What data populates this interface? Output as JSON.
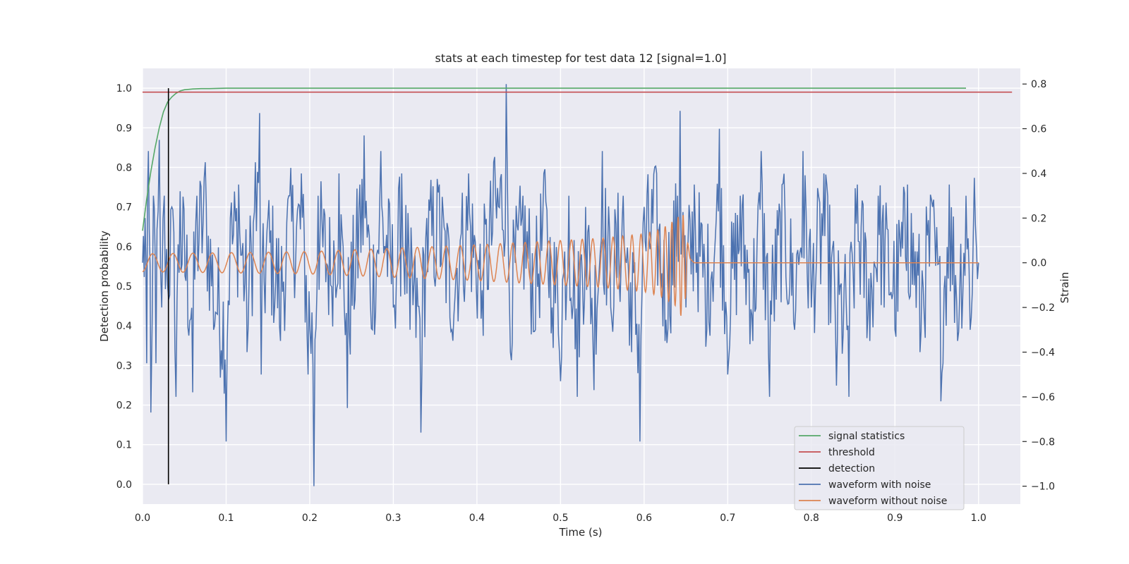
{
  "chart_data": {
    "type": "line",
    "title": "stats at each timestep for test data 12 [signal=1.0]",
    "xlabel": "Time (s)",
    "ylabel": "Detection probability",
    "y2label": "Strain",
    "xlim": [
      0.0,
      1.05
    ],
    "ylim": [
      -0.05,
      1.05
    ],
    "y2lim": [
      -1.08,
      0.87
    ],
    "grid": true,
    "legend_position": "lower-right",
    "x_ticks": [
      "0.0",
      "0.1",
      "0.2",
      "0.3",
      "0.4",
      "0.5",
      "0.6",
      "0.7",
      "0.8",
      "0.9",
      "1.0"
    ],
    "y_ticks": [
      "0.0",
      "0.1",
      "0.2",
      "0.3",
      "0.4",
      "0.5",
      "0.6",
      "0.7",
      "0.8",
      "0.9",
      "1.0"
    ],
    "y2_ticks": [
      "−1.0",
      "−0.8",
      "−0.6",
      "−0.4",
      "−0.2",
      "0.0",
      "0.2",
      "0.4",
      "0.6",
      "0.8"
    ],
    "colors": {
      "signal_statistics": "#55a868",
      "threshold": "#c44e52",
      "detection": "#000000",
      "waveform_with_noise": "#4c72b0",
      "waveform_without_noise": "#dd8452",
      "plot_background": "#eaeaf2",
      "grid": "#ffffff"
    },
    "series": [
      {
        "name": "signal statistics",
        "axis": "left",
        "x": [
          0.0,
          0.005,
          0.01,
          0.015,
          0.02,
          0.025,
          0.03,
          0.035,
          0.04,
          0.045,
          0.05,
          0.06,
          0.07,
          0.08,
          0.1,
          0.2,
          0.4,
          0.6,
          0.8,
          0.985
        ],
        "y": [
          0.64,
          0.72,
          0.79,
          0.85,
          0.9,
          0.94,
          0.965,
          0.978,
          0.987,
          0.993,
          0.996,
          0.998,
          0.999,
          0.999,
          1.0,
          1.0,
          1.0,
          1.0,
          1.0,
          1.0
        ]
      },
      {
        "name": "threshold",
        "axis": "left",
        "x": [
          0.0,
          1.04
        ],
        "y": [
          0.99,
          0.99
        ]
      },
      {
        "name": "detection",
        "axis": "left",
        "x": [
          0.031,
          0.031
        ],
        "y": [
          0.0,
          1.0
        ]
      },
      {
        "name": "waveform with noise",
        "axis": "right",
        "description_free": true,
        "x_start": 0.0,
        "x_end": 1.0,
        "peaks": [
          [
            0.0,
            0.0
          ],
          [
            0.003,
            0.2
          ],
          [
            0.005,
            -0.45
          ],
          [
            0.007,
            0.5
          ],
          [
            0.01,
            -0.67
          ],
          [
            0.013,
            0.3
          ],
          [
            0.016,
            -0.45
          ],
          [
            0.02,
            0.55
          ],
          [
            0.023,
            -0.2
          ],
          [
            0.026,
            0.3
          ],
          [
            0.03,
            -0.1
          ],
          [
            0.035,
            0.25
          ],
          [
            0.04,
            -0.6
          ],
          [
            0.045,
            0.32
          ],
          [
            0.06,
            -0.58
          ],
          [
            0.065,
            0.3
          ],
          [
            0.075,
            0.45
          ],
          [
            0.085,
            -0.3
          ],
          [
            0.1,
            -0.8
          ],
          [
            0.105,
            0.2
          ],
          [
            0.115,
            0.35
          ],
          [
            0.125,
            -0.4
          ],
          [
            0.135,
            0.45
          ],
          [
            0.14,
            0.67
          ],
          [
            0.142,
            -0.5
          ],
          [
            0.15,
            0.2
          ],
          [
            0.165,
            -0.35
          ],
          [
            0.175,
            0.3
          ],
          [
            0.19,
            0.4
          ],
          [
            0.198,
            -0.5
          ],
          [
            0.205,
            -1.0
          ],
          [
            0.21,
            0.3
          ],
          [
            0.225,
            -0.1
          ],
          [
            0.235,
            0.4
          ],
          [
            0.245,
            -0.65
          ],
          [
            0.26,
            0.35
          ],
          [
            0.265,
            0.57
          ],
          [
            0.275,
            -0.3
          ],
          [
            0.285,
            0.5
          ],
          [
            0.3,
            -0.2
          ],
          [
            0.31,
            0.4
          ],
          [
            0.32,
            -0.3
          ],
          [
            0.333,
            -0.76
          ],
          [
            0.34,
            0.2
          ],
          [
            0.355,
            0.35
          ],
          [
            0.37,
            -0.3
          ],
          [
            0.38,
            0.1
          ],
          [
            0.39,
            0.4
          ],
          [
            0.405,
            -0.25
          ],
          [
            0.42,
            0.45
          ],
          [
            0.435,
            0.8
          ],
          [
            0.44,
            -0.4
          ],
          [
            0.455,
            0.3
          ],
          [
            0.47,
            -0.3
          ],
          [
            0.48,
            0.4
          ],
          [
            0.49,
            -0.2
          ],
          [
            0.5,
            -0.53
          ],
          [
            0.51,
            0.3
          ],
          [
            0.52,
            -0.6
          ],
          [
            0.53,
            0.25
          ],
          [
            0.54,
            -0.57
          ],
          [
            0.55,
            0.5
          ],
          [
            0.56,
            -0.2
          ],
          [
            0.575,
            0.3
          ],
          [
            0.585,
            -0.4
          ],
          [
            0.595,
            -0.8
          ],
          [
            0.6,
            0.25
          ],
          [
            0.615,
            0.4
          ],
          [
            0.625,
            -0.35
          ],
          [
            0.64,
            0.3
          ],
          [
            0.643,
            0.68
          ],
          [
            0.65,
            -0.2
          ],
          [
            0.66,
            0.35
          ],
          [
            0.675,
            -0.3
          ],
          [
            0.69,
            0.6
          ],
          [
            0.7,
            -0.5
          ],
          [
            0.715,
            0.3
          ],
          [
            0.73,
            -0.35
          ],
          [
            0.74,
            0.5
          ],
          [
            0.75,
            -0.6
          ],
          [
            0.765,
            0.35
          ],
          [
            0.78,
            -0.3
          ],
          [
            0.79,
            0.5
          ],
          [
            0.8,
            -0.2
          ],
          [
            0.815,
            0.4
          ],
          [
            0.83,
            -0.55
          ],
          [
            0.845,
            -0.6
          ],
          [
            0.855,
            0.35
          ],
          [
            0.87,
            -0.35
          ],
          [
            0.88,
            0.3
          ],
          [
            0.9,
            -0.3
          ],
          [
            0.915,
            0.35
          ],
          [
            0.93,
            -0.4
          ],
          [
            0.945,
            0.25
          ],
          [
            0.955,
            -0.62
          ],
          [
            0.965,
            0.35
          ],
          [
            0.975,
            -0.35
          ],
          [
            0.985,
            0.3
          ],
          [
            0.99,
            -0.3
          ],
          [
            0.995,
            0.38
          ],
          [
            1.0,
            0.0
          ]
        ]
      },
      {
        "name": "waveform without noise",
        "axis": "right",
        "x": [
          0.0,
          0.1,
          0.2,
          0.3,
          0.4,
          0.5,
          0.55,
          0.6,
          0.62,
          0.64,
          0.645,
          0.65,
          0.655,
          0.66,
          0.7,
          0.8,
          0.9,
          1.0
        ],
        "amplitude": [
          0.04,
          0.045,
          0.05,
          0.065,
          0.08,
          0.1,
          0.11,
          0.13,
          0.15,
          0.2,
          0.25,
          0.15,
          0.02,
          0.0,
          0.0,
          0.0,
          0.0,
          0.0
        ],
        "frequency_hz": [
          40,
          44,
          48,
          54,
          62,
          74,
          82,
          95,
          110,
          140,
          170,
          200,
          0,
          0,
          0,
          0,
          0,
          0
        ]
      }
    ]
  }
}
